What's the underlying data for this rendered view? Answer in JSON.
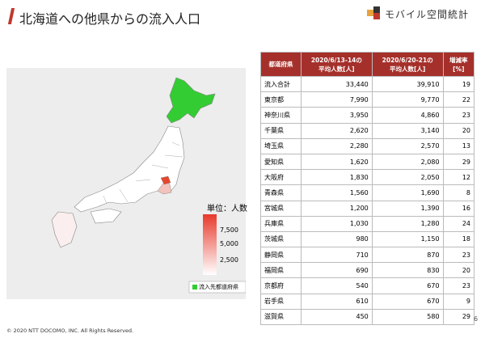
{
  "header": {
    "title": "北海道への他県からの流入人口",
    "logo": "モバイル空間統計"
  },
  "map": {
    "unit_label": "単位：人数",
    "scale_labels": [
      "7,500",
      "5,000",
      "2,500"
    ],
    "legend": "流入先都道府県"
  },
  "table": {
    "headers": [
      [
        "都道府県"
      ],
      [
        "2020/6/13-14の",
        "平均人数[人]"
      ],
      [
        "2020/6/20-21の",
        "平均人数[人]"
      ],
      [
        "増減率",
        "[%]"
      ]
    ],
    "rows": [
      [
        "流入合計",
        "33,440",
        "39,910",
        "19"
      ],
      [
        "東京都",
        "7,990",
        "9,770",
        "22"
      ],
      [
        "神奈川県",
        "3,950",
        "4,860",
        "23"
      ],
      [
        "千葉県",
        "2,620",
        "3,140",
        "20"
      ],
      [
        "埼玉県",
        "2,280",
        "2,570",
        "13"
      ],
      [
        "愛知県",
        "1,620",
        "2,080",
        "29"
      ],
      [
        "大阪府",
        "1,830",
        "2,050",
        "12"
      ],
      [
        "青森県",
        "1,560",
        "1,690",
        "8"
      ],
      [
        "宮城県",
        "1,200",
        "1,390",
        "16"
      ],
      [
        "兵庫県",
        "1,030",
        "1,280",
        "24"
      ],
      [
        "茨城県",
        "980",
        "1,150",
        "18"
      ],
      [
        "静岡県",
        "710",
        "870",
        "23"
      ],
      [
        "福岡県",
        "690",
        "830",
        "20"
      ],
      [
        "京都府",
        "540",
        "670",
        "23"
      ],
      [
        "岩手県",
        "610",
        "670",
        "9"
      ],
      [
        "滋賀県",
        "450",
        "580",
        "29"
      ]
    ]
  },
  "footer": {
    "copyright": "© 2020 NTT DOCOMO, INC. All Rights Reserved.",
    "page": "6"
  }
}
